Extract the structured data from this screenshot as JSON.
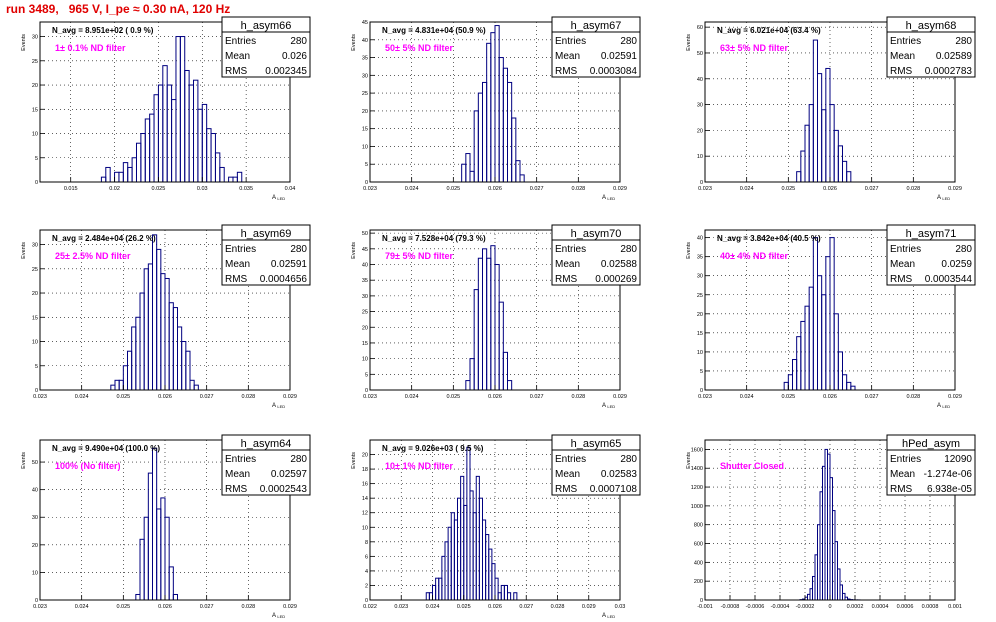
{
  "title": "run 3489,   965 V, I_pe ≈ 0.30 nA, 120 Hz",
  "colors": {
    "hist": "#000080",
    "note": "#ff00ff",
    "title": "#e00000",
    "grid": "#000000"
  },
  "chart_data": [
    {
      "type": "bar",
      "name": "h_asym66",
      "stats": {
        "Entries": "280",
        "Mean": "0.026",
        "RMS": "0.002345"
      },
      "navg": "N_avg = 8.951e+02 ( 0.9 %)",
      "note": "1± 0.1% ND filter",
      "ylabel": "Events",
      "xlabel": "A_LED",
      "xlim": [
        0.0115,
        0.04
      ],
      "xticks": [
        0.015,
        0.02,
        0.025,
        0.03,
        0.035,
        0.04
      ],
      "xtick_labels": [
        "0.015",
        "0.02",
        "0.025",
        "0.03",
        "0.035",
        "0.04"
      ],
      "ylim": [
        0,
        33
      ],
      "yticks": [
        0,
        5,
        10,
        15,
        20,
        25,
        30
      ],
      "bin_width": 0.0005,
      "bins_start": 0.0185,
      "values": [
        1,
        3,
        0,
        2,
        2,
        4,
        3,
        5,
        8,
        10,
        13,
        14,
        18,
        20,
        24,
        20,
        17,
        30,
        30,
        23,
        20,
        21,
        15,
        16,
        11,
        10,
        6,
        3,
        0,
        1,
        1,
        2
      ]
    },
    {
      "type": "bar",
      "name": "h_asym67",
      "stats": {
        "Entries": "280",
        "Mean": "0.02591",
        "RMS": "0.0003084"
      },
      "navg": "N_avg = 4.831e+04 (50.9 %)",
      "note": "50± 5% ND filter",
      "ylabel": "Events",
      "xlabel": "A_LED",
      "xlim": [
        0.023,
        0.029
      ],
      "xticks": [
        0.023,
        0.024,
        0.025,
        0.026,
        0.027,
        0.028,
        0.029
      ],
      "xtick_labels": [
        "0.023",
        "0.024",
        "0.025",
        "0.026",
        "0.027",
        "0.028",
        "0.029"
      ],
      "ylim": [
        0,
        45
      ],
      "yticks": [
        0,
        5,
        10,
        15,
        20,
        25,
        30,
        35,
        40,
        45
      ],
      "bin_width": 0.0001,
      "bins_start": 0.0252,
      "values": [
        5,
        8,
        3,
        20,
        25,
        28,
        39,
        42,
        44,
        35,
        32,
        28,
        18,
        6,
        2
      ]
    },
    {
      "type": "bar",
      "name": "h_asym68",
      "stats": {
        "Entries": "280",
        "Mean": "0.02589",
        "RMS": "0.0002783"
      },
      "navg": "N_avg = 6.021e+04 (63.4 %)",
      "note": "63± 5% ND filter",
      "ylabel": "Events",
      "xlabel": "A_LED",
      "xlim": [
        0.023,
        0.029
      ],
      "xticks": [
        0.023,
        0.024,
        0.025,
        0.026,
        0.027,
        0.028,
        0.029
      ],
      "xtick_labels": [
        "0.023",
        "0.024",
        "0.025",
        "0.026",
        "0.027",
        "0.028",
        "0.029"
      ],
      "ylim": [
        0,
        62
      ],
      "yticks": [
        0,
        10,
        20,
        30,
        40,
        50,
        60
      ],
      "bin_width": 0.0001,
      "bins_start": 0.0252,
      "values": [
        4,
        12,
        22,
        30,
        55,
        42,
        28,
        44,
        30,
        20,
        14,
        8,
        4
      ]
    },
    {
      "type": "bar",
      "name": "h_asym69",
      "stats": {
        "Entries": "280",
        "Mean": "0.02591",
        "RMS": "0.0004656"
      },
      "navg": "N_avg = 2.484e+04 (26.2 %)",
      "note": "25± 2.5% ND filter",
      "ylabel": "Events",
      "xlabel": "A_LED",
      "xlim": [
        0.023,
        0.029
      ],
      "xticks": [
        0.023,
        0.024,
        0.025,
        0.026,
        0.027,
        0.028,
        0.029
      ],
      "xtick_labels": [
        "0.023",
        "0.024",
        "0.025",
        "0.026",
        "0.027",
        "0.028",
        "0.029"
      ],
      "ylim": [
        0,
        33
      ],
      "yticks": [
        0,
        5,
        10,
        15,
        20,
        25,
        30
      ],
      "bin_width": 0.0001,
      "bins_start": 0.0247,
      "values": [
        1,
        2,
        2,
        5,
        8,
        13,
        15,
        20,
        25,
        26,
        32,
        29,
        24,
        23,
        18,
        17,
        13,
        10,
        8,
        2,
        1
      ]
    },
    {
      "type": "bar",
      "name": "h_asym70",
      "stats": {
        "Entries": "280",
        "Mean": "0.02588",
        "RMS": "0.000269"
      },
      "navg": "N_avg = 7.528e+04 (79.3 %)",
      "note": "79± 5% ND filter",
      "ylabel": "Events",
      "xlabel": "A_LED",
      "xlim": [
        0.023,
        0.029
      ],
      "xticks": [
        0.023,
        0.024,
        0.025,
        0.026,
        0.027,
        0.028,
        0.029
      ],
      "xtick_labels": [
        "0.023",
        "0.024",
        "0.025",
        "0.026",
        "0.027",
        "0.028",
        "0.029"
      ],
      "ylim": [
        0,
        51
      ],
      "yticks": [
        0,
        5,
        10,
        15,
        20,
        25,
        30,
        35,
        40,
        45,
        50
      ],
      "bin_width": 0.0001,
      "bins_start": 0.0253,
      "values": [
        3,
        10,
        32,
        42,
        45,
        42,
        46,
        40,
        28,
        12,
        3
      ]
    },
    {
      "type": "bar",
      "name": "h_asym71",
      "stats": {
        "Entries": "280",
        "Mean": "0.0259",
        "RMS": "0.0003544"
      },
      "navg": "N_avg = 3.842e+04 (40.5 %)",
      "note": "40± 4% ND filter",
      "ylabel": "Events",
      "xlabel": "A_LED",
      "xlim": [
        0.023,
        0.029
      ],
      "xticks": [
        0.023,
        0.024,
        0.025,
        0.026,
        0.027,
        0.028,
        0.029
      ],
      "xtick_labels": [
        "0.023",
        "0.024",
        "0.025",
        "0.026",
        "0.027",
        "0.028",
        "0.029"
      ],
      "ylim": [
        0,
        42
      ],
      "yticks": [
        0,
        5,
        10,
        15,
        20,
        25,
        30,
        35,
        40
      ],
      "bin_width": 0.0001,
      "bins_start": 0.0249,
      "values": [
        2,
        4,
        8,
        14,
        18,
        22,
        27,
        40,
        30,
        25,
        35,
        40,
        20,
        10,
        4,
        2,
        1
      ]
    },
    {
      "type": "bar",
      "name": "h_asym64",
      "stats": {
        "Entries": "280",
        "Mean": "0.02597",
        "RMS": "0.0002543"
      },
      "navg": "N_avg = 9.490e+04 (100.0 %)",
      "note": "100% (No filter)",
      "ylabel": "Events",
      "xlabel": "A_LED",
      "xlim": [
        0.023,
        0.029
      ],
      "xticks": [
        0.023,
        0.024,
        0.025,
        0.026,
        0.027,
        0.028,
        0.029
      ],
      "xtick_labels": [
        "0.023",
        "0.024",
        "0.025",
        "0.026",
        "0.027",
        "0.028",
        "0.029"
      ],
      "ylim": [
        0,
        58
      ],
      "yticks": [
        0,
        10,
        20,
        30,
        40,
        50
      ],
      "bin_width": 0.0001,
      "bins_start": 0.0253,
      "values": [
        2,
        22,
        30,
        46,
        55,
        33,
        37,
        30,
        12,
        2
      ]
    },
    {
      "type": "bar",
      "name": "h_asym65",
      "stats": {
        "Entries": "280",
        "Mean": "0.02583",
        "RMS": "0.0007108"
      },
      "navg": "N_avg = 9.026e+03 ( 9.5 %)",
      "note": "10± 1% ND filter",
      "ylabel": "Events",
      "xlabel": "A_LED",
      "xlim": [
        0.022,
        0.03
      ],
      "xticks": [
        0.022,
        0.023,
        0.024,
        0.025,
        0.026,
        0.027,
        0.028,
        0.029,
        0.03
      ],
      "xtick_labels": [
        "0.022",
        "0.023",
        "0.024",
        "0.025",
        "0.026",
        "0.027",
        "0.028",
        "0.029",
        "0.03"
      ],
      "ylim": [
        0,
        22
      ],
      "yticks": [
        0,
        2,
        4,
        6,
        8,
        10,
        12,
        14,
        16,
        18,
        20
      ],
      "bin_width": 0.0001,
      "bins_start": 0.0238,
      "values": [
        1,
        1,
        2,
        3,
        3,
        6,
        8,
        10,
        12,
        11,
        14,
        17,
        13,
        21,
        15,
        12,
        17,
        14,
        11,
        9,
        7,
        5,
        3,
        1,
        2,
        2,
        1,
        0,
        1
      ]
    },
    {
      "type": "bar",
      "name": "hPed_asym",
      "stats": {
        "Entries": "12090",
        "Mean": "-1.274e-06",
        "RMS": "6.938e-05"
      },
      "navg": "",
      "note": "Shutter Closed",
      "ylabel": "Events",
      "xlabel": "",
      "xlim": [
        -0.001,
        0.001
      ],
      "xticks": [
        -0.001,
        -0.0008,
        -0.0006,
        -0.0004,
        -0.0002,
        0,
        0.0002,
        0.0004,
        0.0006,
        0.0008,
        0.001
      ],
      "xtick_labels": [
        "-0.001",
        "-0.0008",
        "-0.0006",
        "-0.0004",
        "-0.0002",
        "0",
        "0.0002",
        "0.0004",
        "0.0006",
        "0.0008",
        "0.001"
      ],
      "ylim": [
        0,
        1700
      ],
      "yticks": [
        0,
        200,
        400,
        600,
        800,
        1000,
        1200,
        1400,
        1600
      ],
      "bin_width": 2e-05,
      "bins_start": -0.00024,
      "values": [
        4,
        10,
        30,
        60,
        120,
        250,
        480,
        800,
        1150,
        1420,
        1600,
        1550,
        1300,
        950,
        620,
        330,
        160,
        70,
        30,
        10,
        4,
        2,
        1,
        1
      ]
    }
  ]
}
